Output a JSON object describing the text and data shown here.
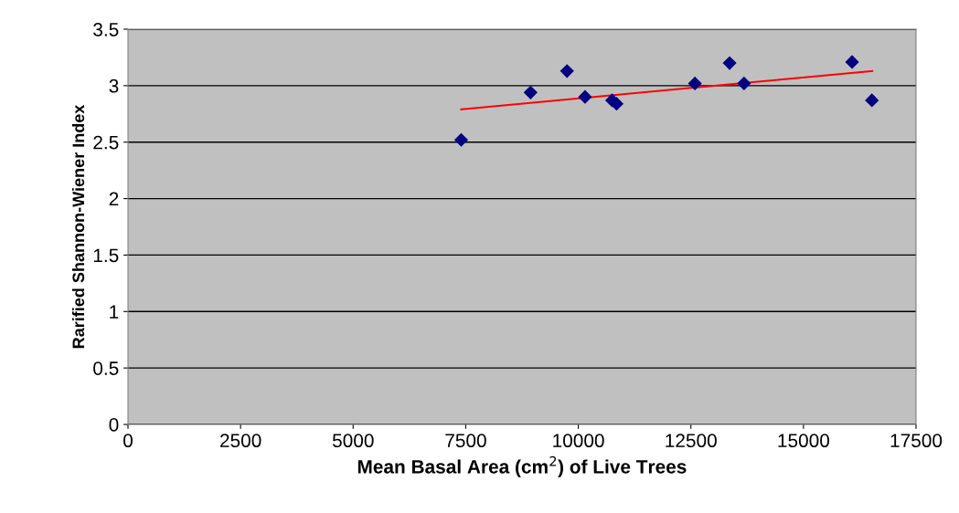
{
  "chart_data": {
    "type": "scatter",
    "xlabel": "Mean Basal Area (cm$^{2}$) of Live Trees",
    "ylabel": "Rarified Shannon-Wiener Index",
    "xlim": [
      0,
      17500
    ],
    "xticks": [
      0,
      2500,
      5000,
      7500,
      10000,
      12500,
      15000,
      17500
    ],
    "ylim": [
      0,
      3.5
    ],
    "yticks": [
      0,
      0.5,
      1,
      1.5,
      2,
      2.5,
      3,
      3.5
    ],
    "grid": "y",
    "series": [
      {
        "marker": "diamond",
        "color": "#000080",
        "x": [
          7400,
          8940,
          9750,
          10150,
          10750,
          10850,
          12590,
          13360,
          13680,
          16080,
          16520
        ],
        "values": [
          2.52,
          2.94,
          3.13,
          2.9,
          2.87,
          2.84,
          3.02,
          3.2,
          3.02,
          3.21,
          2.87
        ]
      },
      {
        "type": "line",
        "marker": "none",
        "color": "#ff0000",
        "x": [
          7400,
          16530
        ],
        "values": [
          2.79,
          3.13
        ]
      }
    ]
  }
}
